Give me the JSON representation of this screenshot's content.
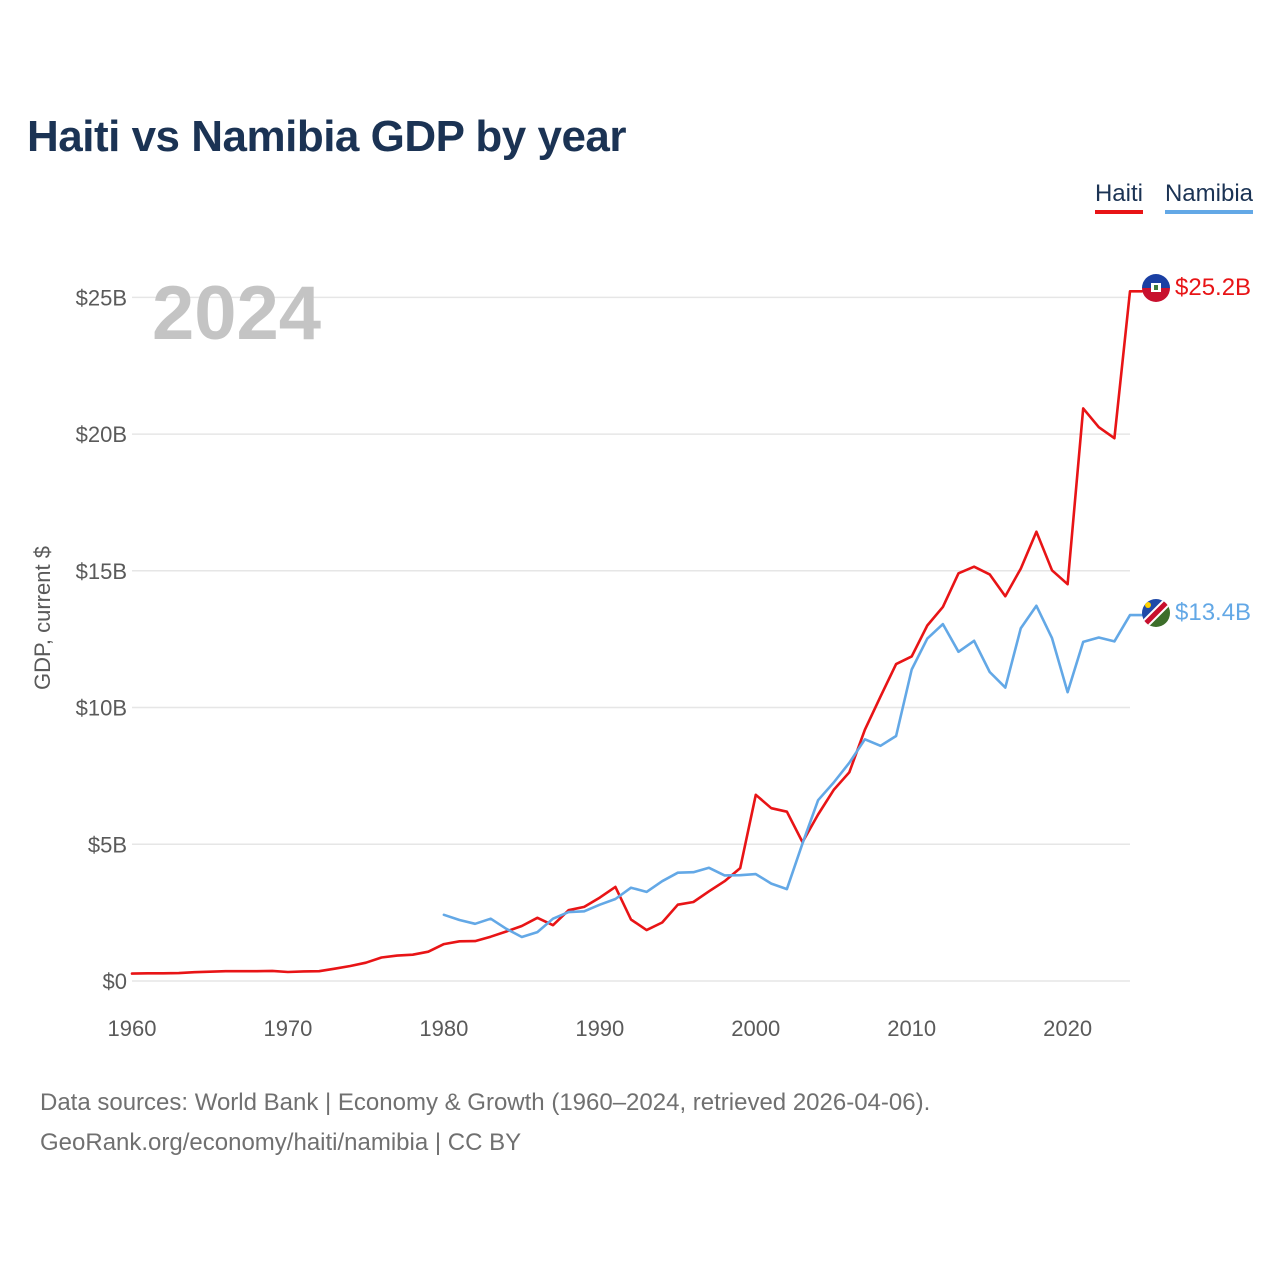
{
  "chart_data": {
    "type": "line",
    "title": "Haiti vs Namibia GDP by year",
    "ylabel": "GDP, current $",
    "xlabel": "",
    "xlim": [
      1960,
      2024
    ],
    "ylim": [
      0,
      26
    ],
    "y_ticks": [
      0,
      5,
      10,
      15,
      20,
      25
    ],
    "y_tick_labels": [
      "$0",
      "$5B",
      "$10B",
      "$15B",
      "$20B",
      "$25B"
    ],
    "x_ticks": [
      1960,
      1970,
      1980,
      1990,
      2000,
      2010,
      2020
    ],
    "x_tick_labels": [
      "1960",
      "1970",
      "1980",
      "1990",
      "2000",
      "2010",
      "2020"
    ],
    "grid": true,
    "legend_position": "top-right",
    "year_watermark": "2024",
    "series": [
      {
        "name": "Haiti",
        "color": "#e81416",
        "end_label": "$25.2B",
        "x": [
          1960,
          1961,
          1962,
          1963,
          1964,
          1965,
          1966,
          1967,
          1968,
          1969,
          1970,
          1971,
          1972,
          1973,
          1974,
          1975,
          1976,
          1977,
          1978,
          1979,
          1980,
          1981,
          1982,
          1983,
          1984,
          1985,
          1986,
          1987,
          1988,
          1989,
          1990,
          1991,
          1992,
          1993,
          1994,
          1995,
          1996,
          1997,
          1998,
          1999,
          2000,
          2001,
          2002,
          2003,
          2004,
          2005,
          2006,
          2007,
          2008,
          2009,
          2010,
          2011,
          2012,
          2013,
          2014,
          2015,
          2016,
          2017,
          2018,
          2019,
          2020,
          2021,
          2022,
          2023,
          2024
        ],
        "values": [
          0.27,
          0.28,
          0.28,
          0.29,
          0.32,
          0.34,
          0.36,
          0.36,
          0.36,
          0.37,
          0.33,
          0.35,
          0.36,
          0.45,
          0.55,
          0.67,
          0.86,
          0.93,
          0.96,
          1.07,
          1.35,
          1.45,
          1.46,
          1.62,
          1.81,
          2.01,
          2.31,
          2.04,
          2.59,
          2.71,
          3.05,
          3.44,
          2.25,
          1.86,
          2.14,
          2.79,
          2.89,
          3.28,
          3.65,
          4.13,
          6.81,
          6.32,
          6.19,
          5.08,
          6.09,
          6.99,
          7.63,
          9.19,
          10.4,
          11.59,
          11.87,
          13.0,
          13.68,
          14.91,
          15.15,
          14.87,
          14.07,
          15.08,
          16.43,
          15.02,
          14.51,
          20.94,
          20.25,
          19.85,
          25.22
        ]
      },
      {
        "name": "Namibia",
        "color": "#63a8e6",
        "end_label": "$13.4B",
        "x": [
          1980,
          1981,
          1982,
          1983,
          1984,
          1985,
          1986,
          1987,
          1988,
          1989,
          1990,
          1991,
          1992,
          1993,
          1994,
          1995,
          1996,
          1997,
          1998,
          1999,
          2000,
          2001,
          2002,
          2003,
          2004,
          2005,
          2006,
          2007,
          2008,
          2009,
          2010,
          2011,
          2012,
          2013,
          2014,
          2015,
          2016,
          2017,
          2018,
          2019,
          2020,
          2021,
          2022,
          2023,
          2024
        ],
        "values": [
          2.42,
          2.23,
          2.09,
          2.28,
          1.91,
          1.61,
          1.79,
          2.28,
          2.52,
          2.55,
          2.79,
          3.0,
          3.41,
          3.26,
          3.65,
          3.96,
          3.98,
          4.14,
          3.86,
          3.87,
          3.91,
          3.56,
          3.36,
          5.03,
          6.61,
          7.26,
          7.98,
          8.84,
          8.6,
          8.96,
          11.39,
          12.52,
          13.05,
          12.04,
          12.44,
          11.3,
          10.73,
          12.9,
          13.72,
          12.54,
          10.56,
          12.4,
          12.56,
          12.42,
          13.38
        ]
      }
    ]
  },
  "legend": {
    "haiti_label": "Haiti",
    "namibia_label": "Namibia"
  },
  "footer": {
    "line1": "Data sources: World Bank | Economy & Growth (1960–2024, retrieved 2026-04-06).",
    "line2": "GeoRank.org/economy/haiti/namibia | CC BY"
  },
  "flags": {
    "haiti": "haiti-flag-icon",
    "namibia": "namibia-flag-icon"
  }
}
